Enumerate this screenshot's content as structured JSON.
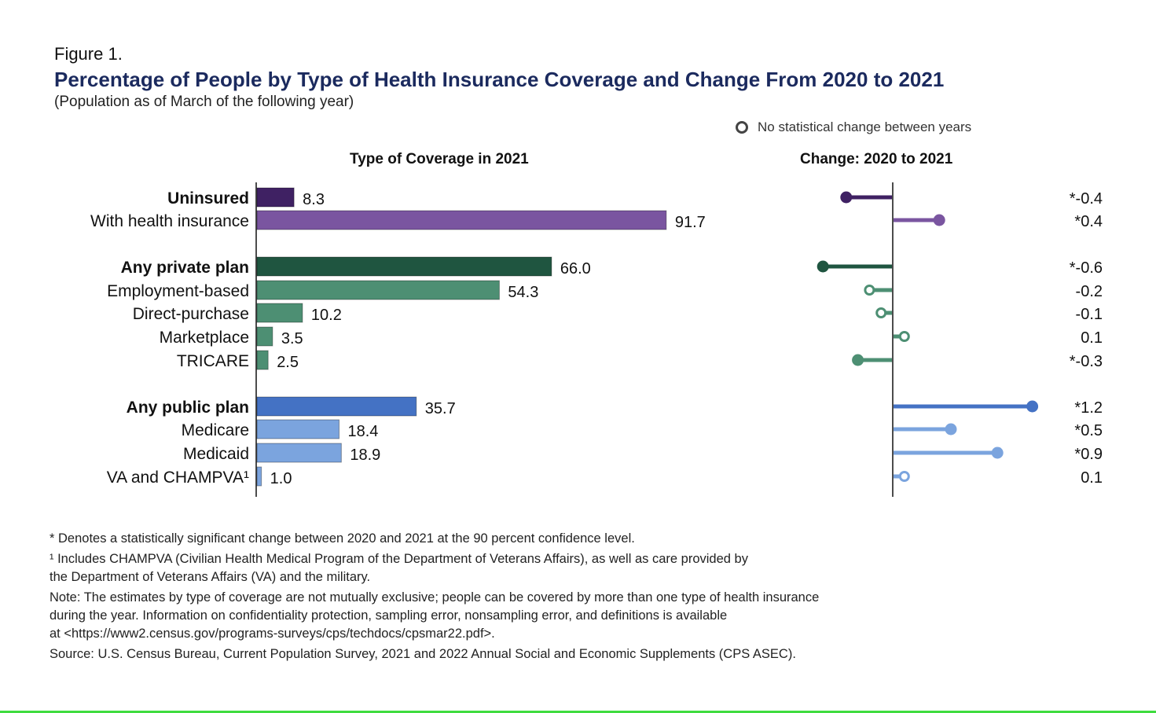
{
  "figure_label": "Figure 1.",
  "title": "Percentage of People by Type of Health Insurance Coverage and Change From 2020 to 2021",
  "subtitle": "(Population as of March of the following year)",
  "legend": {
    "icon": "hollow-circle",
    "label": "No statistical change between years"
  },
  "chart_data": [
    {
      "type": "bar",
      "orientation": "horizontal",
      "title": "Type of Coverage in 2021",
      "categories": [
        "Uninsured",
        "With health insurance",
        "Any private plan",
        "Employment-based",
        "Direct-purchase",
        "Marketplace",
        "TRICARE",
        "Any public plan",
        "Medicare",
        "Medicaid",
        "VA and CHAMPVA¹"
      ],
      "bold": [
        true,
        false,
        true,
        false,
        false,
        false,
        false,
        true,
        false,
        false,
        false
      ],
      "groups": [
        0,
        0,
        1,
        1,
        1,
        1,
        1,
        2,
        2,
        2,
        2
      ],
      "values": [
        8.3,
        91.7,
        66.0,
        54.3,
        10.2,
        3.5,
        2.5,
        35.7,
        18.4,
        18.9,
        1.0
      ],
      "value_labels": [
        "8.3",
        "91.7",
        "66.0",
        "54.3",
        "10.2",
        "3.5",
        "2.5",
        "35.7",
        "18.4",
        "18.9",
        "1.0"
      ],
      "colors": [
        "#3f2163",
        "#7a55a0",
        "#1f5540",
        "#4d8f73",
        "#4d8f73",
        "#4d8f73",
        "#4d8f73",
        "#4472c4",
        "#7ba4de",
        "#7ba4de",
        "#7ba4de"
      ],
      "xlim": [
        0,
        100
      ]
    },
    {
      "type": "lollipop",
      "title": "Change: 2020 to 2021",
      "categories": [
        "Uninsured",
        "With health insurance",
        "Any private plan",
        "Employment-based",
        "Direct-purchase",
        "Marketplace",
        "TRICARE",
        "Any public plan",
        "Medicare",
        "Medicaid",
        "VA and CHAMPVA¹"
      ],
      "values": [
        -0.4,
        0.4,
        -0.6,
        -0.2,
        -0.1,
        0.1,
        -0.3,
        1.2,
        0.5,
        0.9,
        0.1
      ],
      "significant": [
        true,
        true,
        true,
        false,
        false,
        false,
        true,
        true,
        true,
        true,
        false
      ],
      "value_labels": [
        "*-0.4",
        "*0.4",
        "*-0.6",
        "-0.2",
        "-0.1",
        "0.1",
        "*-0.3",
        "*1.2",
        "*0.5",
        "*0.9",
        "0.1"
      ],
      "colors": [
        "#3f2163",
        "#7a55a0",
        "#1f5540",
        "#4d8f73",
        "#4d8f73",
        "#4d8f73",
        "#4d8f73",
        "#4472c4",
        "#7ba4de",
        "#7ba4de",
        "#7ba4de"
      ]
    }
  ],
  "notes": [
    "* Denotes a statistically significant change between 2020 and 2021 at the 90 percent confidence level.",
    "¹ Includes CHAMPVA (Civilian Health Medical Program of the Department of Veterans Affairs), as well as care provided by",
    "the Department of Veterans Affairs (VA) and the military.",
    "Note: The estimates by type of coverage are not mutually exclusive; people can be covered by more than one type of health insurance",
    "during the year. Information on confidentiality protection, sampling error, nonsampling error, and definitions is available",
    "at <https://www2.census.gov/programs-surveys/cps/techdocs/cpsmar22.pdf>.",
    "Source: U.S. Census Bureau, Current Population Survey, 2021 and 2022 Annual Social and Economic Supplements (CPS ASEC)."
  ]
}
